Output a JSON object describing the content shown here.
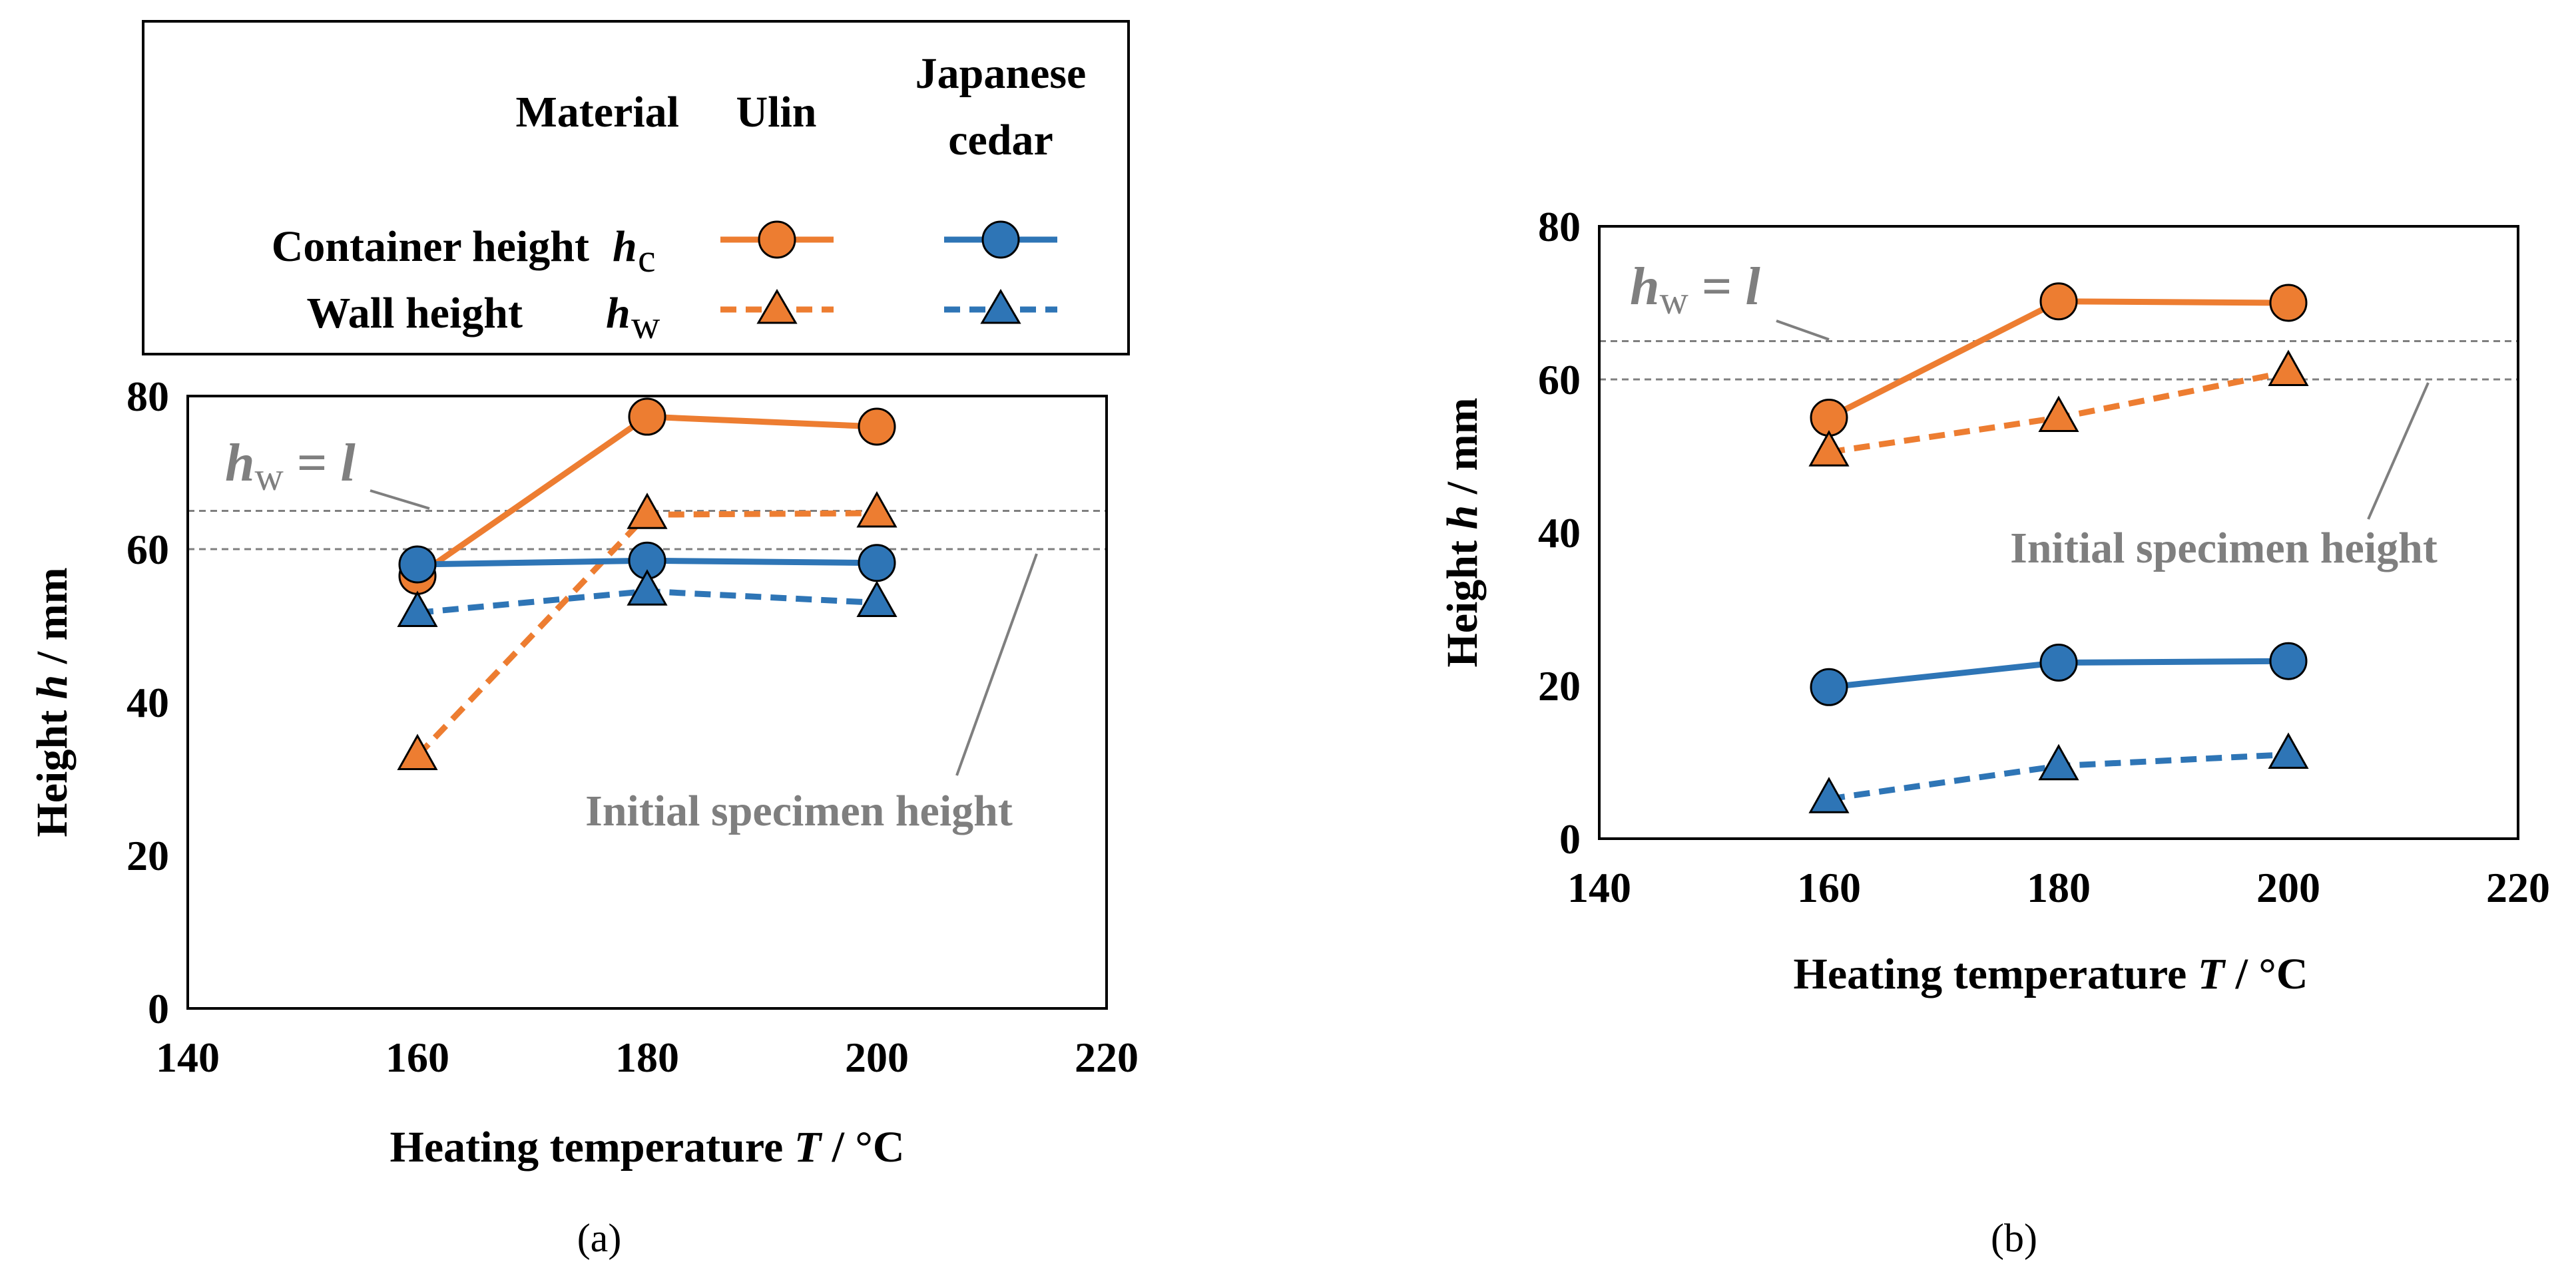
{
  "legend": {
    "header_material": "Material",
    "header_ulin": "Ulin",
    "header_cedar_line1": "Japanese",
    "header_cedar_line2": "cedar",
    "row1_label": "Container height",
    "row1_symbol": "h",
    "row1_sub": "c",
    "row2_label": "Wall height",
    "row2_symbol": "h",
    "row2_sub": "w"
  },
  "colors": {
    "ulin": "#ED7D31",
    "cedar": "#2E75B6",
    "ref": "#7f7f7f"
  },
  "chart_data": [
    {
      "id": "a",
      "type": "line",
      "caption": "(a)",
      "xlabel_text": "Heating temperature ",
      "xlabel_symbol": "T",
      "xlabel_unit": " / °C",
      "ylabel_text": "Height ",
      "ylabel_symbol": "h",
      "ylabel_unit": " / mm",
      "xlim": [
        140,
        220
      ],
      "ylim": [
        0,
        80
      ],
      "xticks": [
        "140",
        "160",
        "180",
        "200",
        "220"
      ],
      "yticks": [
        "0",
        "20",
        "40",
        "60",
        "80"
      ],
      "x": [
        160,
        180,
        200
      ],
      "series": [
        {
          "name": "Ulin container height h_c",
          "material": "Ulin",
          "kind": "container",
          "values": [
            56.5,
            77.3,
            76.0
          ]
        },
        {
          "name": "Ulin wall height h_w",
          "material": "Ulin",
          "kind": "wall",
          "values": [
            33.0,
            64.5,
            64.7
          ]
        },
        {
          "name": "Japanese cedar container height h_c",
          "material": "Japanese cedar",
          "kind": "container",
          "values": [
            58.0,
            58.5,
            58.2
          ]
        },
        {
          "name": "Japanese cedar wall height h_w",
          "material": "Japanese cedar",
          "kind": "wall",
          "values": [
            51.7,
            54.5,
            53.0
          ]
        }
      ],
      "ref_lines": [
        {
          "value": 65,
          "label_symbol": "h",
          "label_sub": "w",
          "label_rest": " = ",
          "label_end": "l"
        },
        {
          "value": 60,
          "label": "Initial specimen height"
        }
      ]
    },
    {
      "id": "b",
      "type": "line",
      "caption": "(b)",
      "xlabel_text": "Heating temperature ",
      "xlabel_symbol": "T",
      "xlabel_unit": " / °C",
      "ylabel_text": "Height ",
      "ylabel_symbol": "h",
      "ylabel_unit": " / mm",
      "xlim": [
        140,
        220
      ],
      "ylim": [
        0,
        80
      ],
      "xticks": [
        "140",
        "160",
        "180",
        "200",
        "220"
      ],
      "yticks": [
        "0",
        "20",
        "40",
        "60",
        "80"
      ],
      "x": [
        160,
        180,
        200
      ],
      "series": [
        {
          "name": "Ulin container height h_c",
          "material": "Ulin",
          "kind": "container",
          "values": [
            55.0,
            70.2,
            70.0
          ]
        },
        {
          "name": "Ulin wall height h_w",
          "material": "Ulin",
          "kind": "wall",
          "values": [
            50.5,
            55.0,
            61.0
          ]
        },
        {
          "name": "Japanese cedar container height h_c",
          "material": "Japanese cedar",
          "kind": "container",
          "values": [
            19.8,
            23.0,
            23.2
          ]
        },
        {
          "name": "Japanese cedar wall height h_w",
          "material": "Japanese cedar",
          "kind": "wall",
          "values": [
            5.2,
            9.5,
            11.0
          ]
        }
      ],
      "ref_lines": [
        {
          "value": 65,
          "label_symbol": "h",
          "label_sub": "w",
          "label_rest": " = ",
          "label_end": "l"
        },
        {
          "value": 60,
          "label": "Initial specimen height"
        }
      ]
    }
  ]
}
